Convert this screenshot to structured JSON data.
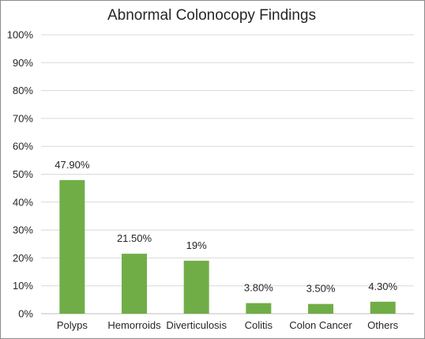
{
  "chart_data": {
    "type": "bar",
    "title": "Abnormal Colonocopy Findings",
    "xlabel": "",
    "ylabel": "",
    "categories": [
      "Polyps",
      "Hemorroids",
      "Diverticulosis",
      "Colitis",
      "Colon Cancer",
      "Others"
    ],
    "values": [
      47.9,
      21.5,
      19,
      3.8,
      3.5,
      4.3
    ],
    "data_labels": [
      "47.90%",
      "21.50%",
      "19%",
      "3.80%",
      "3.50%",
      "4.30%"
    ],
    "ylim": [
      0,
      100
    ],
    "yticks": [
      0,
      10,
      20,
      30,
      40,
      50,
      60,
      70,
      80,
      90,
      100
    ],
    "ytick_labels": [
      "0%",
      "10%",
      "20%",
      "30%",
      "40%",
      "50%",
      "60%",
      "70%",
      "80%",
      "90%",
      "100%"
    ],
    "grid": true,
    "legend": "none",
    "bar_color": "#70ad47",
    "grid_color": "#d9d9d9"
  }
}
